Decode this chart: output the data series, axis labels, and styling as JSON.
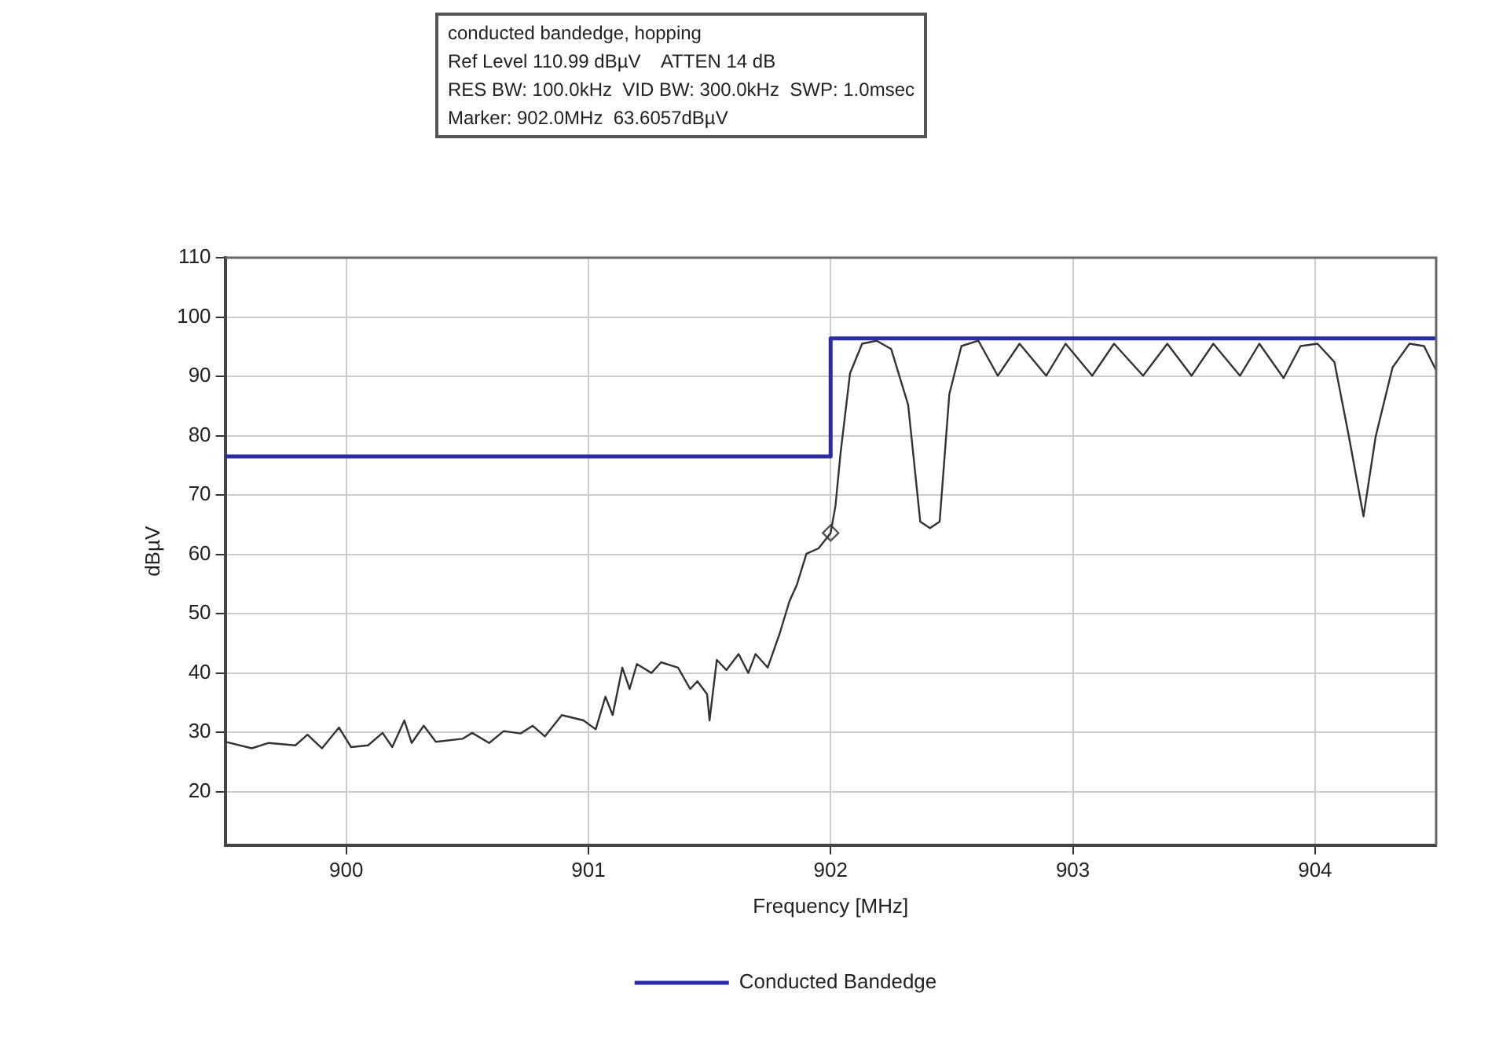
{
  "chart_data": {
    "type": "line",
    "title": "conducted bandedge, hopping",
    "xlabel": "Frequency [MHz]",
    "ylabel": "dBµV",
    "annotations": [
      "Ref Level 110.99 dBµV    ATTEN 14 dB",
      "RES BW: 100.0kHz  VID BW: 300.0kHz  SWP: 1.0msec",
      "Marker: 902.0MHz  63.6057dBµV"
    ],
    "xlim": [
      899.5,
      904.5
    ],
    "xticks": [
      900,
      901,
      902,
      903,
      904
    ],
    "ylim": [
      11,
      110
    ],
    "yticks": [
      20,
      30,
      40,
      50,
      60,
      70,
      80,
      90,
      100,
      110
    ],
    "grid": true,
    "legend": "bottom",
    "series": [
      {
        "type": "line",
        "color": "#333333",
        "marker": "none",
        "x": [
          899.5,
          899.61,
          899.68,
          899.79,
          899.84,
          899.9,
          899.97,
          900.02,
          900.09,
          900.15,
          900.19,
          900.24,
          900.27,
          900.32,
          900.37,
          900.48,
          900.52,
          900.59,
          900.65,
          900.72,
          900.77,
          900.82,
          900.89,
          900.98,
          901.03,
          901.07,
          901.1,
          901.14,
          901.17,
          901.2,
          901.26,
          901.3,
          901.37,
          901.42,
          901.45,
          901.49,
          901.5,
          901.53,
          901.57,
          901.62,
          901.66,
          901.69,
          901.74,
          901.79,
          901.83,
          901.86,
          901.9,
          901.95,
          902.0,
          902.02,
          902.04,
          902.08,
          902.13,
          902.19,
          902.25,
          902.32,
          902.37,
          902.41,
          902.45,
          902.49,
          902.54,
          902.61,
          902.69,
          902.78,
          902.89,
          902.97,
          903.08,
          903.17,
          903.29,
          903.39,
          903.49,
          903.58,
          903.69,
          903.77,
          903.87,
          903.94,
          904.01,
          904.08,
          904.14,
          904.2,
          904.25,
          904.32,
          904.39,
          904.45,
          904.5
        ],
        "values": [
          28.4,
          27.3,
          28.2,
          27.8,
          29.6,
          27.3,
          30.8,
          27.5,
          27.8,
          29.9,
          27.5,
          32.0,
          28.2,
          31.1,
          28.4,
          28.9,
          29.9,
          28.2,
          30.2,
          29.8,
          31.1,
          29.3,
          32.9,
          32.0,
          30.5,
          36.0,
          32.9,
          40.9,
          37.3,
          41.5,
          40.0,
          41.8,
          40.9,
          37.3,
          38.6,
          36.4,
          32.0,
          42.2,
          40.5,
          43.2,
          40.0,
          43.2,
          40.9,
          46.7,
          52.1,
          54.8,
          60.1,
          61.0,
          63.6,
          68.2,
          76.7,
          90.5,
          95.5,
          96.0,
          94.6,
          85.2,
          65.5,
          64.4,
          65.5,
          87.0,
          95.1,
          96.0,
          90.1,
          95.5,
          90.1,
          95.5,
          90.1,
          95.5,
          90.1,
          95.5,
          90.1,
          95.5,
          90.1,
          95.5,
          89.7,
          95.1,
          95.5,
          92.4,
          79.8,
          66.4,
          79.8,
          91.5,
          95.5,
          95.1,
          91.0
        ]
      },
      {
        "type": "step",
        "name": "Conducted Bandedge",
        "color": "#2b2ba6",
        "marker": "none",
        "x": [
          899.5,
          902,
          904.5
        ],
        "values": [
          76.5,
          96.4,
          96.4
        ]
      },
      {
        "type": "scatter",
        "color": "#555555",
        "marker": "diamond",
        "x": [
          902
        ],
        "values": [
          63.6
        ]
      }
    ]
  }
}
